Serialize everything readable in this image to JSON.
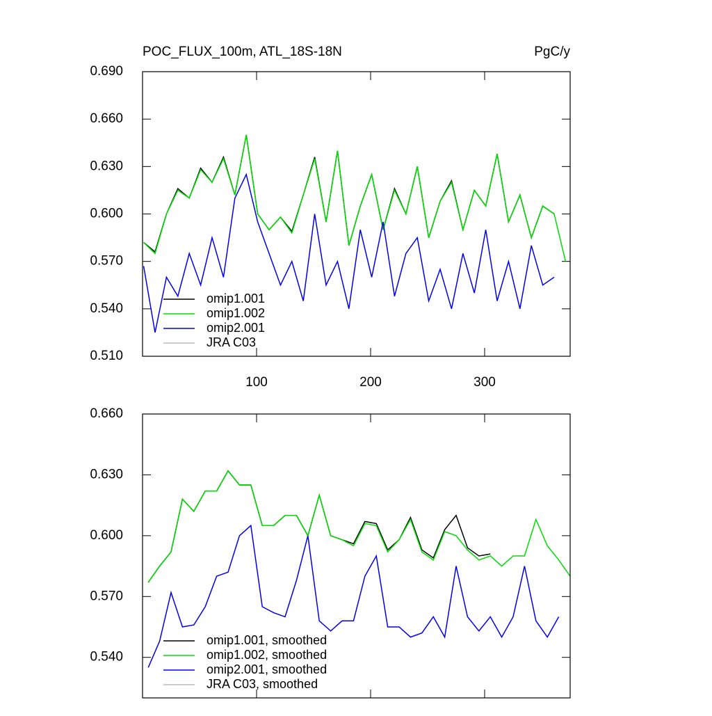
{
  "chart_data": [
    {
      "type": "line",
      "title": "POC_FLUX_100m, ATL_18S-18N",
      "subtitle": "PgC/y",
      "x": [
        1,
        11,
        21,
        31,
        41,
        51,
        61,
        71,
        81,
        91,
        101,
        111,
        121,
        131,
        141,
        151,
        161,
        171,
        181,
        191,
        201,
        211,
        221,
        231,
        241,
        251,
        261,
        271,
        281,
        291,
        301,
        311,
        321,
        331,
        341,
        351,
        361,
        371
      ],
      "series": [
        {
          "name": "omip1.001",
          "color": "#000000",
          "values": [
            0.582,
            0.576,
            0.6,
            0.616,
            0.61,
            0.629,
            0.62,
            0.636,
            0.612,
            0.65,
            0.6,
            0.59,
            0.598,
            0.589,
            0.612,
            0.636,
            0.595,
            0.64,
            0.58,
            0.605,
            0.625,
            0.59,
            0.616,
            0.6,
            0.63,
            0.585,
            0.608,
            0.621,
            0.59,
            0.615,
            0.605,
            0.638,
            0.595,
            0.612,
            0.585,
            0.605,
            0.6,
            null
          ]
        },
        {
          "name": "omip1.002",
          "color": "#00dd00",
          "values": [
            0.582,
            0.575,
            0.6,
            0.615,
            0.61,
            0.628,
            0.62,
            0.635,
            0.612,
            0.65,
            0.6,
            0.59,
            0.598,
            0.588,
            0.612,
            0.635,
            0.595,
            0.64,
            0.58,
            0.605,
            0.625,
            0.59,
            0.615,
            0.6,
            0.63,
            0.585,
            0.608,
            0.62,
            0.59,
            0.615,
            0.605,
            0.638,
            0.595,
            0.612,
            0.585,
            0.605,
            0.6,
            0.57
          ]
        },
        {
          "name": "omip2.001",
          "color": "#0000ee",
          "values": [
            0.567,
            0.525,
            0.56,
            0.548,
            0.575,
            0.555,
            0.585,
            0.56,
            0.61,
            0.625,
            0.595,
            0.575,
            0.555,
            0.57,
            0.545,
            0.6,
            0.555,
            0.57,
            0.54,
            0.59,
            0.56,
            0.595,
            0.548,
            0.575,
            0.585,
            0.545,
            0.565,
            0.54,
            0.575,
            0.55,
            0.59,
            0.545,
            0.57,
            0.54,
            0.58,
            0.555,
            0.56,
            null
          ]
        },
        {
          "name": "JRA C03",
          "color": "#bbbbbb",
          "values": [
            null,
            null,
            null,
            null,
            null,
            null,
            null,
            null,
            null,
            null,
            null,
            null,
            null,
            null,
            null,
            null,
            null,
            null,
            null,
            null,
            null,
            null,
            null,
            null,
            null,
            null,
            null,
            null,
            null,
            null,
            null,
            null,
            null,
            null,
            null,
            null,
            null,
            null
          ]
        }
      ],
      "xlim": [
        0,
        375
      ],
      "xticks": [
        100,
        200,
        300
      ],
      "xtick_labels": true,
      "ylim": [
        0.51,
        0.69
      ],
      "yticks": [
        {
          "value": 0.51,
          "label": "0.510"
        },
        {
          "value": 0.54,
          "label": "0.540"
        },
        {
          "value": 0.57,
          "label": "0.570"
        },
        {
          "value": 0.6,
          "label": "0.600"
        },
        {
          "value": 0.63,
          "label": "0.630"
        },
        {
          "value": 0.66,
          "label": "0.660"
        },
        {
          "value": 0.69,
          "label": "0.690"
        }
      ],
      "legend": "lower left"
    },
    {
      "type": "line",
      "x": [
        5,
        15,
        25,
        35,
        45,
        55,
        65,
        75,
        85,
        95,
        105,
        115,
        125,
        135,
        145,
        155,
        165,
        175,
        185,
        195,
        205,
        215,
        225,
        235,
        245,
        255,
        265,
        275,
        285,
        295,
        305,
        315,
        325,
        335,
        345,
        355,
        365,
        375
      ],
      "series": [
        {
          "name": "omip1.001, smoothed",
          "color": "#000000",
          "values": [
            0.577,
            0.585,
            0.592,
            0.618,
            0.612,
            0.622,
            0.622,
            0.632,
            0.625,
            0.625,
            0.605,
            0.605,
            0.61,
            0.61,
            0.6,
            0.62,
            0.6,
            0.598,
            0.596,
            0.607,
            0.606,
            0.593,
            0.598,
            0.609,
            0.593,
            0.589,
            0.603,
            0.61,
            0.594,
            0.59,
            0.591,
            null,
            null,
            null,
            null,
            null,
            null,
            null
          ]
        },
        {
          "name": "omip1.002, smoothed",
          "color": "#00dd00",
          "values": [
            0.577,
            0.585,
            0.592,
            0.618,
            0.612,
            0.622,
            0.622,
            0.632,
            0.625,
            0.625,
            0.605,
            0.605,
            0.61,
            0.61,
            0.6,
            0.62,
            0.6,
            0.598,
            0.595,
            0.606,
            0.605,
            0.592,
            0.598,
            0.608,
            0.592,
            0.588,
            0.602,
            0.6,
            0.593,
            0.588,
            0.59,
            0.585,
            0.59,
            0.59,
            0.608,
            0.595,
            0.588,
            0.58
          ]
        },
        {
          "name": "omip2.001, smoothed",
          "color": "#0000ee",
          "values": [
            0.535,
            0.548,
            0.572,
            0.555,
            0.556,
            0.565,
            0.58,
            0.582,
            0.6,
            0.605,
            0.565,
            0.562,
            0.56,
            0.578,
            0.6,
            0.558,
            0.553,
            0.558,
            0.558,
            0.58,
            0.59,
            0.555,
            0.555,
            0.55,
            0.552,
            0.56,
            0.55,
            0.585,
            0.56,
            0.553,
            0.56,
            0.55,
            0.56,
            0.585,
            0.558,
            0.55,
            0.56,
            null
          ]
        },
        {
          "name": "JRA C03, smoothed",
          "color": "#bbbbbb",
          "values": [
            null,
            null,
            null,
            null,
            null,
            null,
            null,
            null,
            null,
            null,
            null,
            null,
            null,
            null,
            null,
            null,
            null,
            null,
            null,
            null,
            null,
            null,
            null,
            null,
            null,
            null,
            null,
            null,
            null,
            null,
            null,
            null,
            null,
            null,
            null,
            null,
            null,
            null
          ]
        }
      ],
      "xlim": [
        0,
        375
      ],
      "xticks": [
        100,
        200,
        300
      ],
      "xtick_labels": false,
      "ylim": [
        0.52,
        0.66
      ],
      "yticks": [
        {
          "value": 0.54,
          "label": "0.540"
        },
        {
          "value": 0.57,
          "label": "0.570"
        },
        {
          "value": 0.6,
          "label": "0.600"
        },
        {
          "value": 0.63,
          "label": "0.630"
        },
        {
          "value": 0.66,
          "label": "0.660"
        }
      ],
      "legend": "lower left"
    }
  ]
}
